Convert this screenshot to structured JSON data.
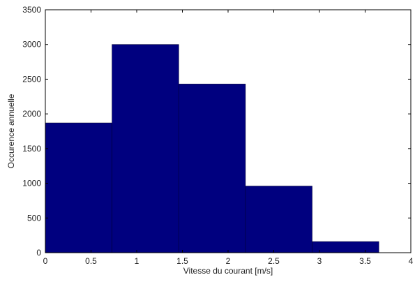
{
  "chart_data": {
    "type": "bar",
    "title": "",
    "xlabel": "Vitesse du courant [m/s]",
    "ylabel": "Occurence annuelle",
    "xlim": [
      0,
      4
    ],
    "ylim": [
      0,
      3500
    ],
    "x_ticks": [
      "0",
      "0.5",
      "1",
      "1.5",
      "2",
      "2.5",
      "3",
      "3.5",
      "4"
    ],
    "y_ticks": [
      "0",
      "500",
      "1000",
      "1500",
      "2000",
      "2500",
      "3000",
      "3500"
    ],
    "bins": [
      {
        "x0": 0.0,
        "x1": 0.73,
        "value": 1870
      },
      {
        "x0": 0.73,
        "x1": 1.46,
        "value": 3000
      },
      {
        "x0": 1.46,
        "x1": 2.19,
        "value": 2430
      },
      {
        "x0": 2.19,
        "x1": 2.92,
        "value": 960
      },
      {
        "x0": 2.92,
        "x1": 3.65,
        "value": 160
      }
    ],
    "bar_color": "#00007f",
    "grid": false,
    "legend": "none"
  }
}
